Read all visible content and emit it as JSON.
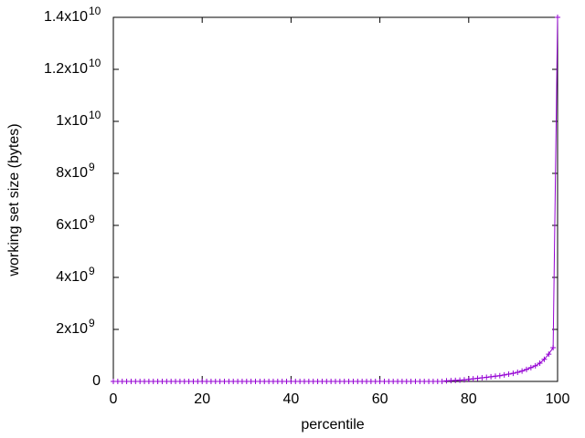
{
  "chart_data": {
    "type": "line",
    "xlabel": "percentile",
    "ylabel": "working set size (bytes)",
    "x": [
      0,
      1,
      2,
      3,
      4,
      5,
      6,
      7,
      8,
      9,
      10,
      11,
      12,
      13,
      14,
      15,
      16,
      17,
      18,
      19,
      20,
      21,
      22,
      23,
      24,
      25,
      26,
      27,
      28,
      29,
      30,
      31,
      32,
      33,
      34,
      35,
      36,
      37,
      38,
      39,
      40,
      41,
      42,
      43,
      44,
      45,
      46,
      47,
      48,
      49,
      50,
      51,
      52,
      53,
      54,
      55,
      56,
      57,
      58,
      59,
      60,
      61,
      62,
      63,
      64,
      65,
      66,
      67,
      68,
      69,
      70,
      71,
      72,
      73,
      74,
      75,
      76,
      77,
      78,
      79,
      80,
      81,
      82,
      83,
      84,
      85,
      86,
      87,
      88,
      89,
      90,
      91,
      92,
      93,
      94,
      95,
      96,
      97,
      98,
      99,
      100
    ],
    "series": [
      {
        "color": "#9400d3",
        "marker": "+",
        "values": [
          0,
          0,
          0,
          0,
          0,
          0,
          0,
          0,
          0,
          0,
          0,
          0,
          0,
          0,
          0,
          0,
          0,
          0,
          0,
          0,
          0,
          0,
          0,
          0,
          0,
          0,
          0,
          0,
          0,
          0,
          0,
          0,
          0,
          0,
          0,
          0,
          0,
          0,
          0,
          0,
          0,
          0,
          0,
          0,
          0,
          0,
          0,
          0,
          0,
          0,
          0,
          0,
          0,
          0,
          0,
          0,
          0,
          0,
          0,
          0,
          0,
          0,
          0,
          0,
          0,
          0,
          0,
          0,
          0,
          0,
          0,
          0,
          0,
          0,
          0,
          20000000,
          30000000,
          40000000,
          50000000,
          60000000,
          80000000,
          100000000,
          120000000,
          140000000,
          160000000,
          180000000,
          200000000,
          220000000,
          250000000,
          280000000,
          310000000,
          350000000,
          400000000,
          460000000,
          530000000,
          600000000,
          700000000,
          850000000,
          1050000000,
          1300000000,
          14000000000
        ]
      }
    ],
    "xlim": [
      0,
      100
    ],
    "xticks": [
      0,
      20,
      40,
      60,
      80,
      100
    ],
    "ylim": [
      0,
      14000000000
    ],
    "yticks": [
      0,
      {
        "value": 2000000000,
        "label": "2x10",
        "exponent": "9"
      },
      {
        "value": 4000000000,
        "label": "4x10",
        "exponent": "9"
      },
      {
        "value": 6000000000,
        "label": "6x10",
        "exponent": "9"
      },
      {
        "value": 8000000000,
        "label": "8x10",
        "exponent": "9"
      },
      {
        "value": 10000000000,
        "label": "1x10",
        "exponent": "10"
      },
      {
        "value": 12000000000,
        "label": "1.2x10",
        "exponent": "10"
      },
      {
        "value": 14000000000,
        "label": "1.4x10",
        "exponent": "10"
      }
    ],
    "grid": false
  }
}
